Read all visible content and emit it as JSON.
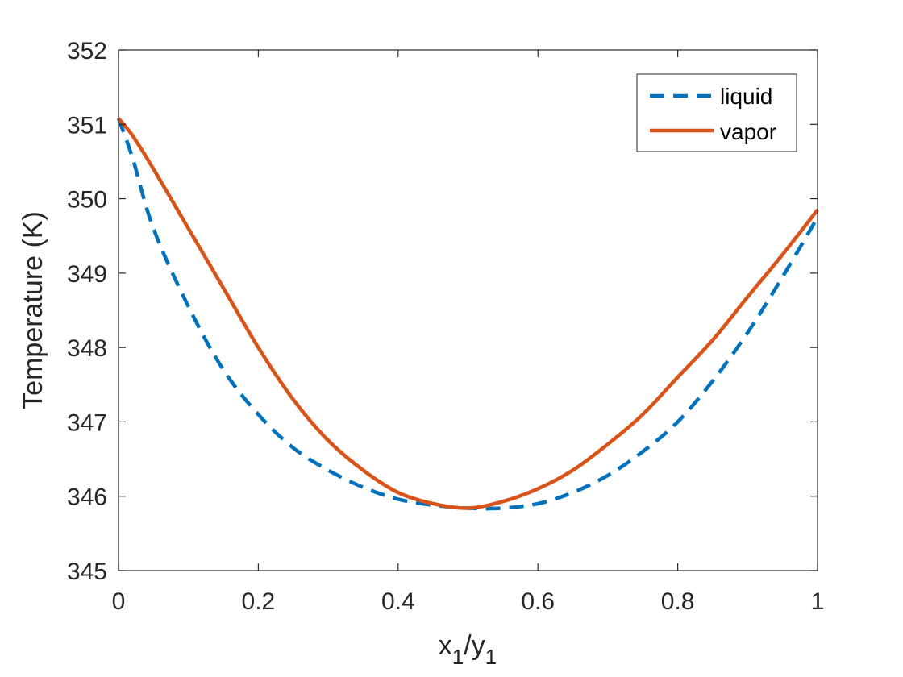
{
  "chart_data": {
    "type": "line",
    "xlabel": "x1/y1",
    "xlabel_parts": {
      "a": "x",
      "a_sub": "1",
      "sep": "/",
      "b": "y",
      "b_sub": "1"
    },
    "ylabel": "Temperature (K)",
    "xlim": [
      0,
      1
    ],
    "ylim": [
      345,
      352
    ],
    "x_ticks": [
      0,
      0.2,
      0.4,
      0.6,
      0.8,
      1
    ],
    "x_tick_labels": [
      "0",
      "0.2",
      "0.4",
      "0.6",
      "0.8",
      "1"
    ],
    "y_ticks": [
      345,
      346,
      347,
      348,
      349,
      350,
      351,
      352
    ],
    "y_tick_labels": [
      "345",
      "346",
      "347",
      "348",
      "349",
      "350",
      "351",
      "352"
    ],
    "grid": false,
    "legend_position": "top-right",
    "series": [
      {
        "name": "liquid",
        "style": "dashed",
        "color": "#0072BD",
        "x": [
          0,
          0.02,
          0.05,
          0.1,
          0.15,
          0.2,
          0.25,
          0.3,
          0.35,
          0.4,
          0.45,
          0.5,
          0.55,
          0.6,
          0.65,
          0.7,
          0.75,
          0.8,
          0.85,
          0.9,
          0.95,
          1.0
        ],
        "y": [
          351.08,
          350.55,
          349.6,
          348.55,
          347.7,
          347.1,
          346.65,
          346.35,
          346.12,
          345.96,
          345.88,
          345.84,
          345.84,
          345.9,
          346.05,
          346.28,
          346.6,
          347.0,
          347.55,
          348.2,
          348.95,
          349.75
        ]
      },
      {
        "name": "vapor",
        "style": "solid",
        "color": "#D95319",
        "x": [
          0,
          0.02,
          0.05,
          0.1,
          0.15,
          0.2,
          0.25,
          0.3,
          0.35,
          0.4,
          0.45,
          0.5,
          0.55,
          0.6,
          0.65,
          0.7,
          0.75,
          0.8,
          0.85,
          0.9,
          0.95,
          1.0
        ],
        "y": [
          351.08,
          350.85,
          350.4,
          349.6,
          348.8,
          348.0,
          347.3,
          346.75,
          346.35,
          346.05,
          345.9,
          345.84,
          345.93,
          346.1,
          346.35,
          346.7,
          347.1,
          347.6,
          348.1,
          348.68,
          349.25,
          349.85
        ]
      }
    ]
  }
}
